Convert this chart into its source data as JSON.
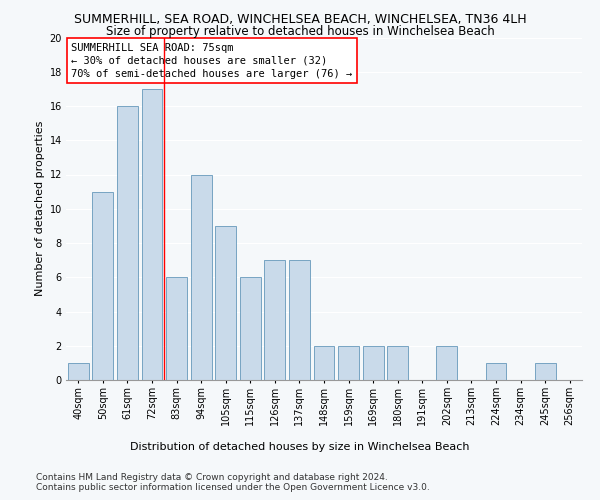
{
  "title": "SUMMERHILL, SEA ROAD, WINCHELSEA BEACH, WINCHELSEA, TN36 4LH",
  "subtitle": "Size of property relative to detached houses in Winchelsea Beach",
  "xlabel": "Distribution of detached houses by size in Winchelsea Beach",
  "ylabel": "Number of detached properties",
  "categories": [
    "40sqm",
    "50sqm",
    "61sqm",
    "72sqm",
    "83sqm",
    "94sqm",
    "105sqm",
    "115sqm",
    "126sqm",
    "137sqm",
    "148sqm",
    "159sqm",
    "169sqm",
    "180sqm",
    "191sqm",
    "202sqm",
    "213sqm",
    "224sqm",
    "234sqm",
    "245sqm",
    "256sqm"
  ],
  "values": [
    1,
    11,
    16,
    17,
    6,
    12,
    9,
    6,
    7,
    7,
    2,
    2,
    2,
    2,
    0,
    2,
    0,
    1,
    0,
    1,
    0
  ],
  "bar_color": "#c9daea",
  "bar_edge_color": "#6699bb",
  "red_line_index": 3.5,
  "annotation_box_text": "SUMMERHILL SEA ROAD: 75sqm\n← 30% of detached houses are smaller (32)\n70% of semi-detached houses are larger (76) →",
  "ylim": [
    0,
    20
  ],
  "yticks": [
    0,
    2,
    4,
    6,
    8,
    10,
    12,
    14,
    16,
    18,
    20
  ],
  "footer_line1": "Contains HM Land Registry data © Crown copyright and database right 2024.",
  "footer_line2": "Contains public sector information licensed under the Open Government Licence v3.0.",
  "bg_color": "#f5f8fa",
  "grid_color": "#ffffff",
  "title_fontsize": 9,
  "subtitle_fontsize": 8.5,
  "axis_label_fontsize": 8,
  "tick_fontsize": 7,
  "footer_fontsize": 6.5,
  "annotation_fontsize": 7.5
}
